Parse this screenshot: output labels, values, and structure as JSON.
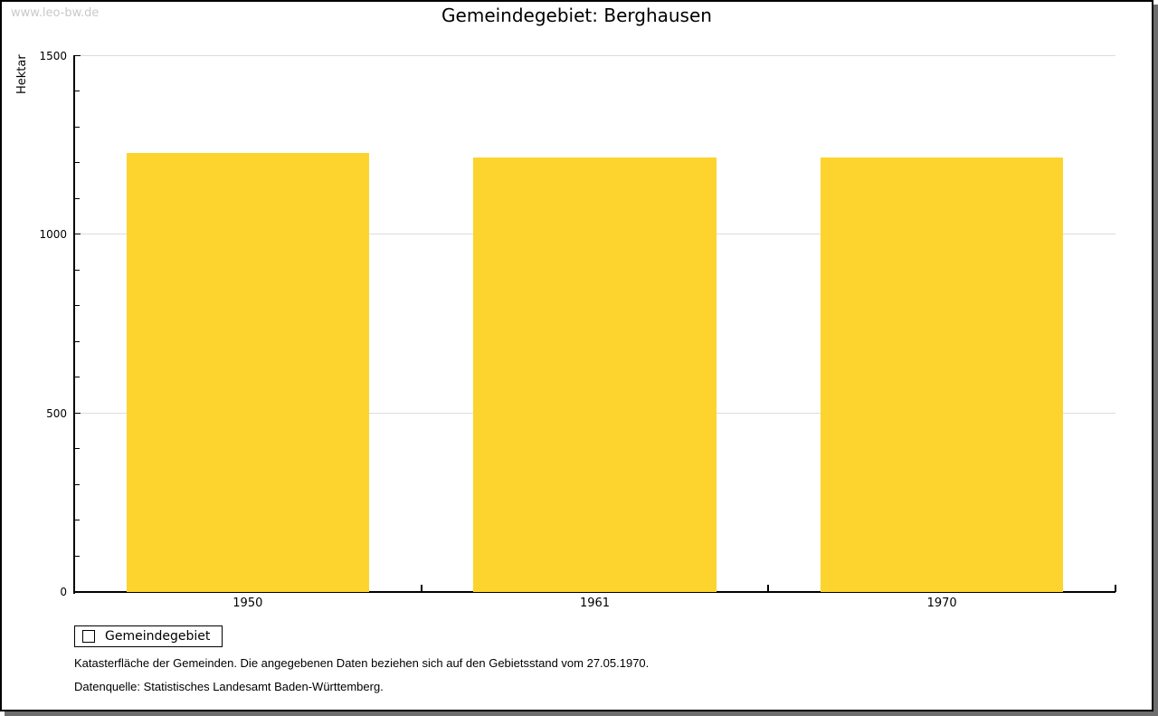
{
  "watermark": "www.leo-bw.de",
  "header": {
    "title": "Gemeindegebiet: Berghausen"
  },
  "chart_data": {
    "type": "bar",
    "title": "Gemeindegebiet: Berghausen",
    "categories": [
      "1950",
      "1961",
      "1970"
    ],
    "series": [
      {
        "name": "Gemeindegebiet",
        "values": [
          1230,
          1215,
          1215
        ]
      }
    ],
    "xlabel": "",
    "ylabel": "Hektar",
    "ylim": [
      0,
      1500
    ],
    "y_major_ticks": [
      0,
      500,
      1000,
      1500
    ],
    "y_minor_step": 100,
    "grid": "horizontal-major-only",
    "legend_position": "bottom-left",
    "bar_color": "#fcd42d"
  },
  "legend": {
    "label": "Gemeindegebiet",
    "swatch_color": "#fcd42d"
  },
  "footnotes": [
    "Katasterfläche der Gemeinden. Die angegebenen Daten beziehen sich auf den Gebietsstand vom 27.05.1970.",
    "Datenquelle: Statistisches Landesamt Baden-Württemberg."
  ],
  "colors": {
    "bar": "#fcd42d",
    "grid": "#dcdcdc",
    "axis": "#000000",
    "watermark": "#c9c9c9",
    "frame_shadow": "#6e6e6e",
    "background": "#ffffff"
  }
}
